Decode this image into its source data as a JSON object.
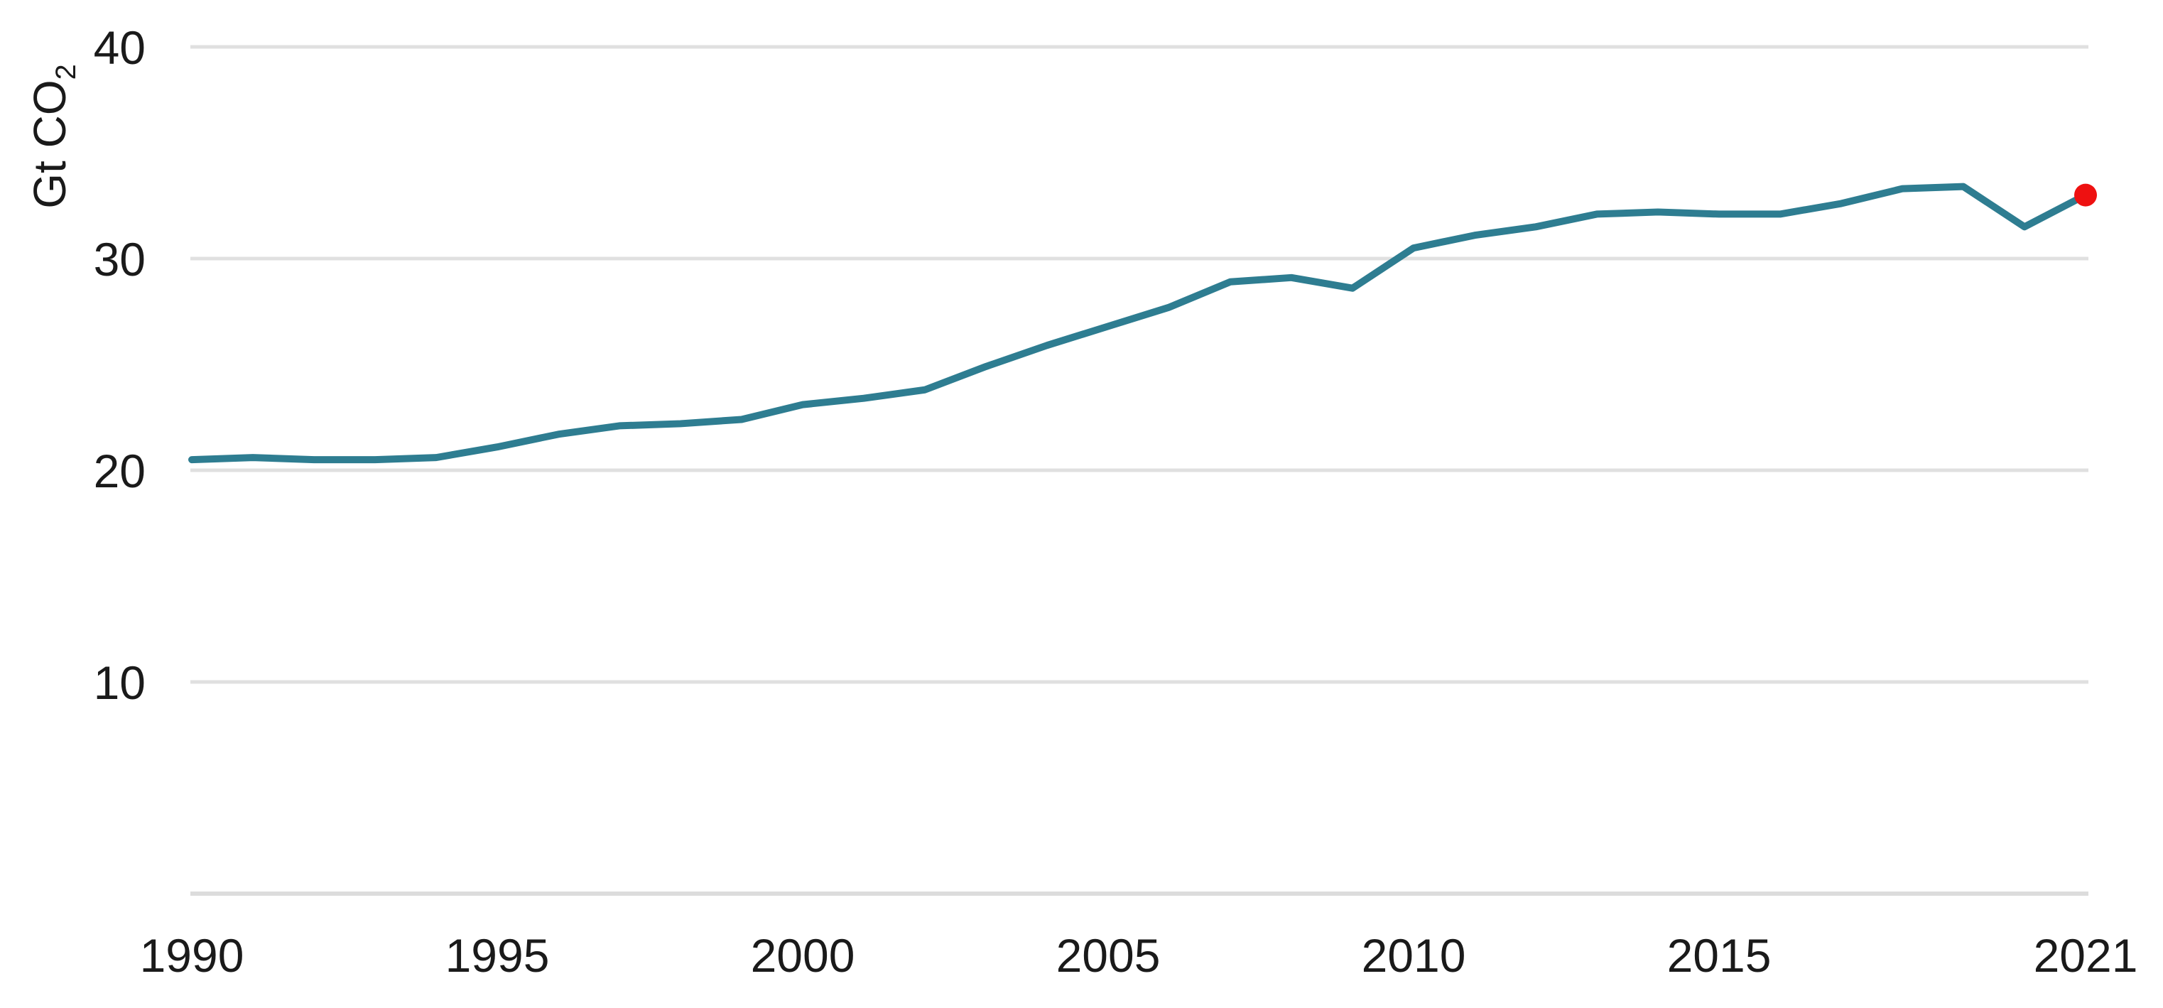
{
  "chart_data": {
    "type": "line",
    "unit": "Gt CO₂",
    "ylabel_main": "Gt CO",
    "ylabel_sub": "2",
    "xlabel": "",
    "x": [
      1990,
      1991,
      1992,
      1993,
      1994,
      1995,
      1996,
      1997,
      1998,
      1999,
      2000,
      2001,
      2002,
      2003,
      2004,
      2005,
      2006,
      2007,
      2008,
      2009,
      2010,
      2011,
      2012,
      2013,
      2014,
      2015,
      2016,
      2017,
      2018,
      2019,
      2020,
      2021
    ],
    "series": [
      {
        "name": "energy-related-co2-emissions",
        "color": "#2E7D91",
        "values": [
          20.5,
          20.6,
          20.5,
          20.5,
          20.6,
          21.1,
          21.7,
          22.1,
          22.2,
          22.4,
          23.1,
          23.4,
          23.8,
          24.9,
          25.9,
          26.8,
          27.7,
          28.9,
          29.1,
          28.6,
          30.5,
          31.1,
          31.5,
          32.1,
          32.2,
          32.1,
          32.1,
          32.6,
          33.3,
          33.4,
          31.5,
          33.0
        ]
      }
    ],
    "highlight_point": {
      "year": 2021,
      "value": 33.0,
      "color": "#EE1111"
    },
    "x_ticks": [
      1990,
      1995,
      2000,
      2005,
      2010,
      2015,
      2021
    ],
    "y_ticks": [
      40,
      30,
      20,
      10
    ],
    "xlim": [
      1990,
      2021
    ],
    "ylim": [
      0,
      40
    ],
    "grid": "horizontal",
    "legend": "none",
    "colors": {
      "line": "#2E7D91",
      "marker": "#EE1111",
      "gridline": "#E0E0E0",
      "baseline": "#DCDCDC",
      "text": "#1A1A1A",
      "background": "#FFFFFF"
    }
  }
}
